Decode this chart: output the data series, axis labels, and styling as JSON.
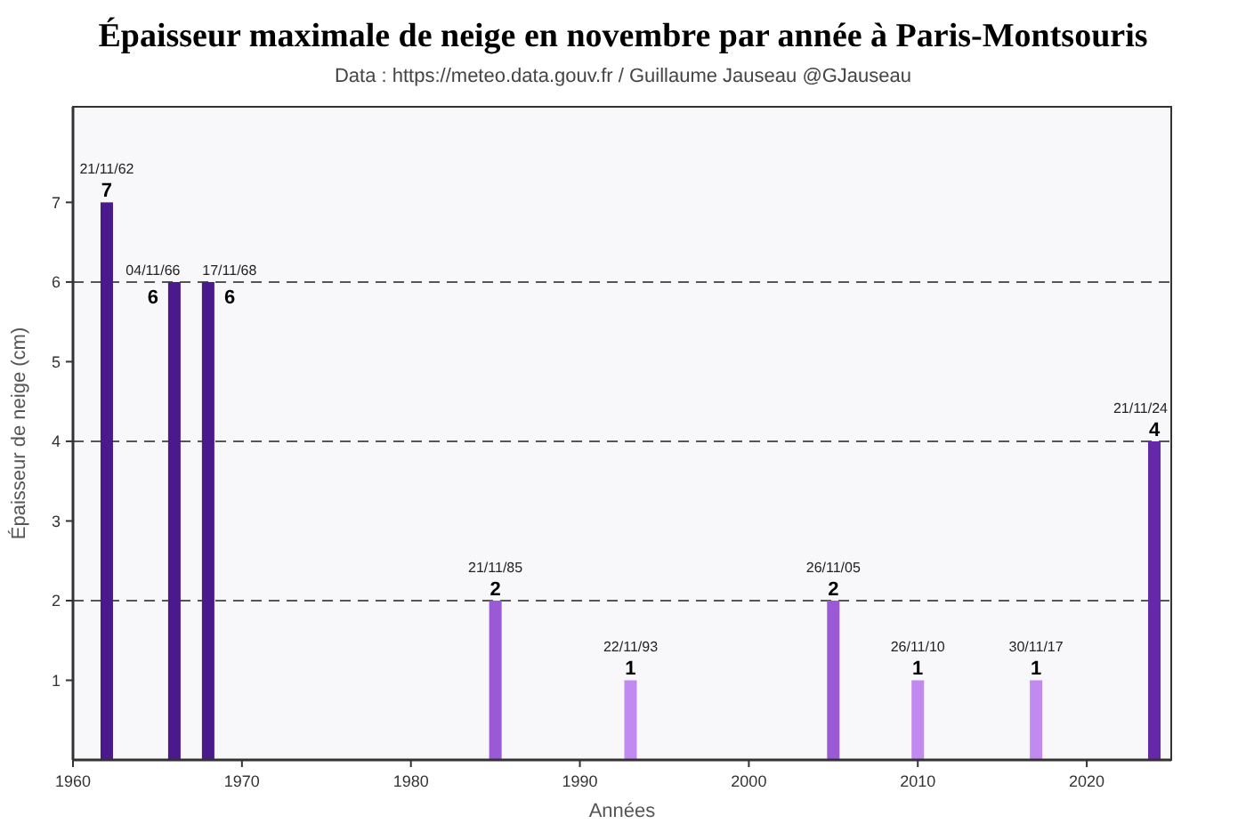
{
  "chart_data": {
    "type": "bar",
    "title": "Épaisseur maximale de neige en novembre par année à Paris-Montsouris",
    "subtitle": "Data : https://meteo.data.gouv.fr / Guillaume Jauseau @GJauseau",
    "xlabel": "Années",
    "ylabel": "Épaisseur de neige (cm)",
    "x": [
      1962,
      1966,
      1968,
      1985,
      1993,
      2005,
      2010,
      2017,
      2024
    ],
    "values": [
      7,
      6,
      6,
      2,
      1,
      2,
      1,
      1,
      4
    ],
    "colors": [
      "#4a1a8c",
      "#4a1a8c",
      "#4a1a8c",
      "#9a5ad6",
      "#c28af0",
      "#9a5ad6",
      "#c28af0",
      "#c28af0",
      "#6528a8"
    ],
    "data_labels": true,
    "xlim": [
      1960,
      2025
    ],
    "xticks": [
      1960,
      1970,
      1980,
      1990,
      2000,
      2010,
      2020
    ],
    "ylim": [
      0,
      8.2
    ],
    "yticks": [
      1,
      2,
      3,
      4,
      5,
      6,
      7
    ],
    "ref_lines": [
      {
        "axis": "y",
        "value": 2,
        "line_style": "dashed",
        "color": "#555555"
      },
      {
        "axis": "y",
        "value": 4,
        "line_style": "dashed",
        "color": "#555555"
      },
      {
        "axis": "y",
        "value": 6,
        "line_style": "dashed",
        "color": "#555555"
      }
    ],
    "annotations": [
      {
        "text": "21/11/62",
        "x": 1962,
        "y": 7
      },
      {
        "text": "04/11/66",
        "x": 1966,
        "y": 6
      },
      {
        "text": "17/11/68",
        "x": 1968,
        "y": 6
      },
      {
        "text": "21/11/85",
        "x": 1985,
        "y": 2
      },
      {
        "text": "22/11/93",
        "x": 1993,
        "y": 1
      },
      {
        "text": "26/11/05",
        "x": 2005,
        "y": 2
      },
      {
        "text": "26/11/10",
        "x": 2010,
        "y": 1
      },
      {
        "text": "30/11/17",
        "x": 2017,
        "y": 1
      },
      {
        "text": "21/11/24",
        "x": 2024,
        "y": 4
      }
    ]
  }
}
